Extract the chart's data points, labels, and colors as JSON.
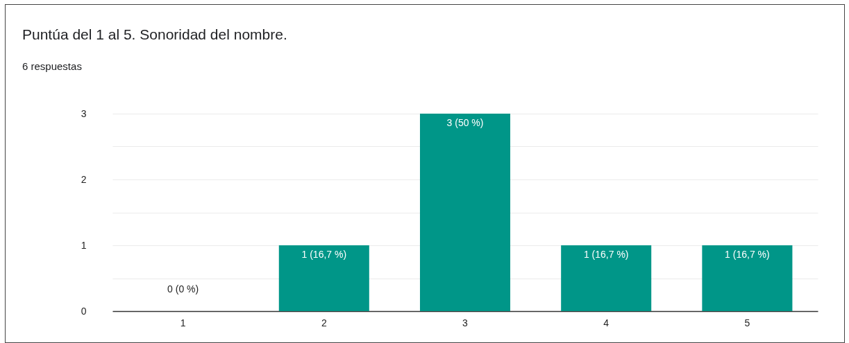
{
  "chart_data": {
    "type": "bar",
    "title": "Puntúa del 1 al 5. Sonoridad del nombre.",
    "subtitle": "6 respuestas",
    "categories": [
      "1",
      "2",
      "3",
      "4",
      "5"
    ],
    "values": [
      0,
      1,
      3,
      1,
      1
    ],
    "value_labels": [
      "0 (0 %)",
      "1 (16,7 %)",
      "3 (50 %)",
      "1 (16,7 %)",
      "1 (16,7 %)"
    ],
    "color": "#009688",
    "ylim": [
      0,
      3
    ],
    "yticks": [
      0,
      {
        "value": 0.5,
        "label": null
      },
      1,
      {
        "value": 1.5,
        "label": null
      },
      2,
      {
        "value": 2.5,
        "label": null
      },
      3
    ],
    "grid": "y"
  }
}
